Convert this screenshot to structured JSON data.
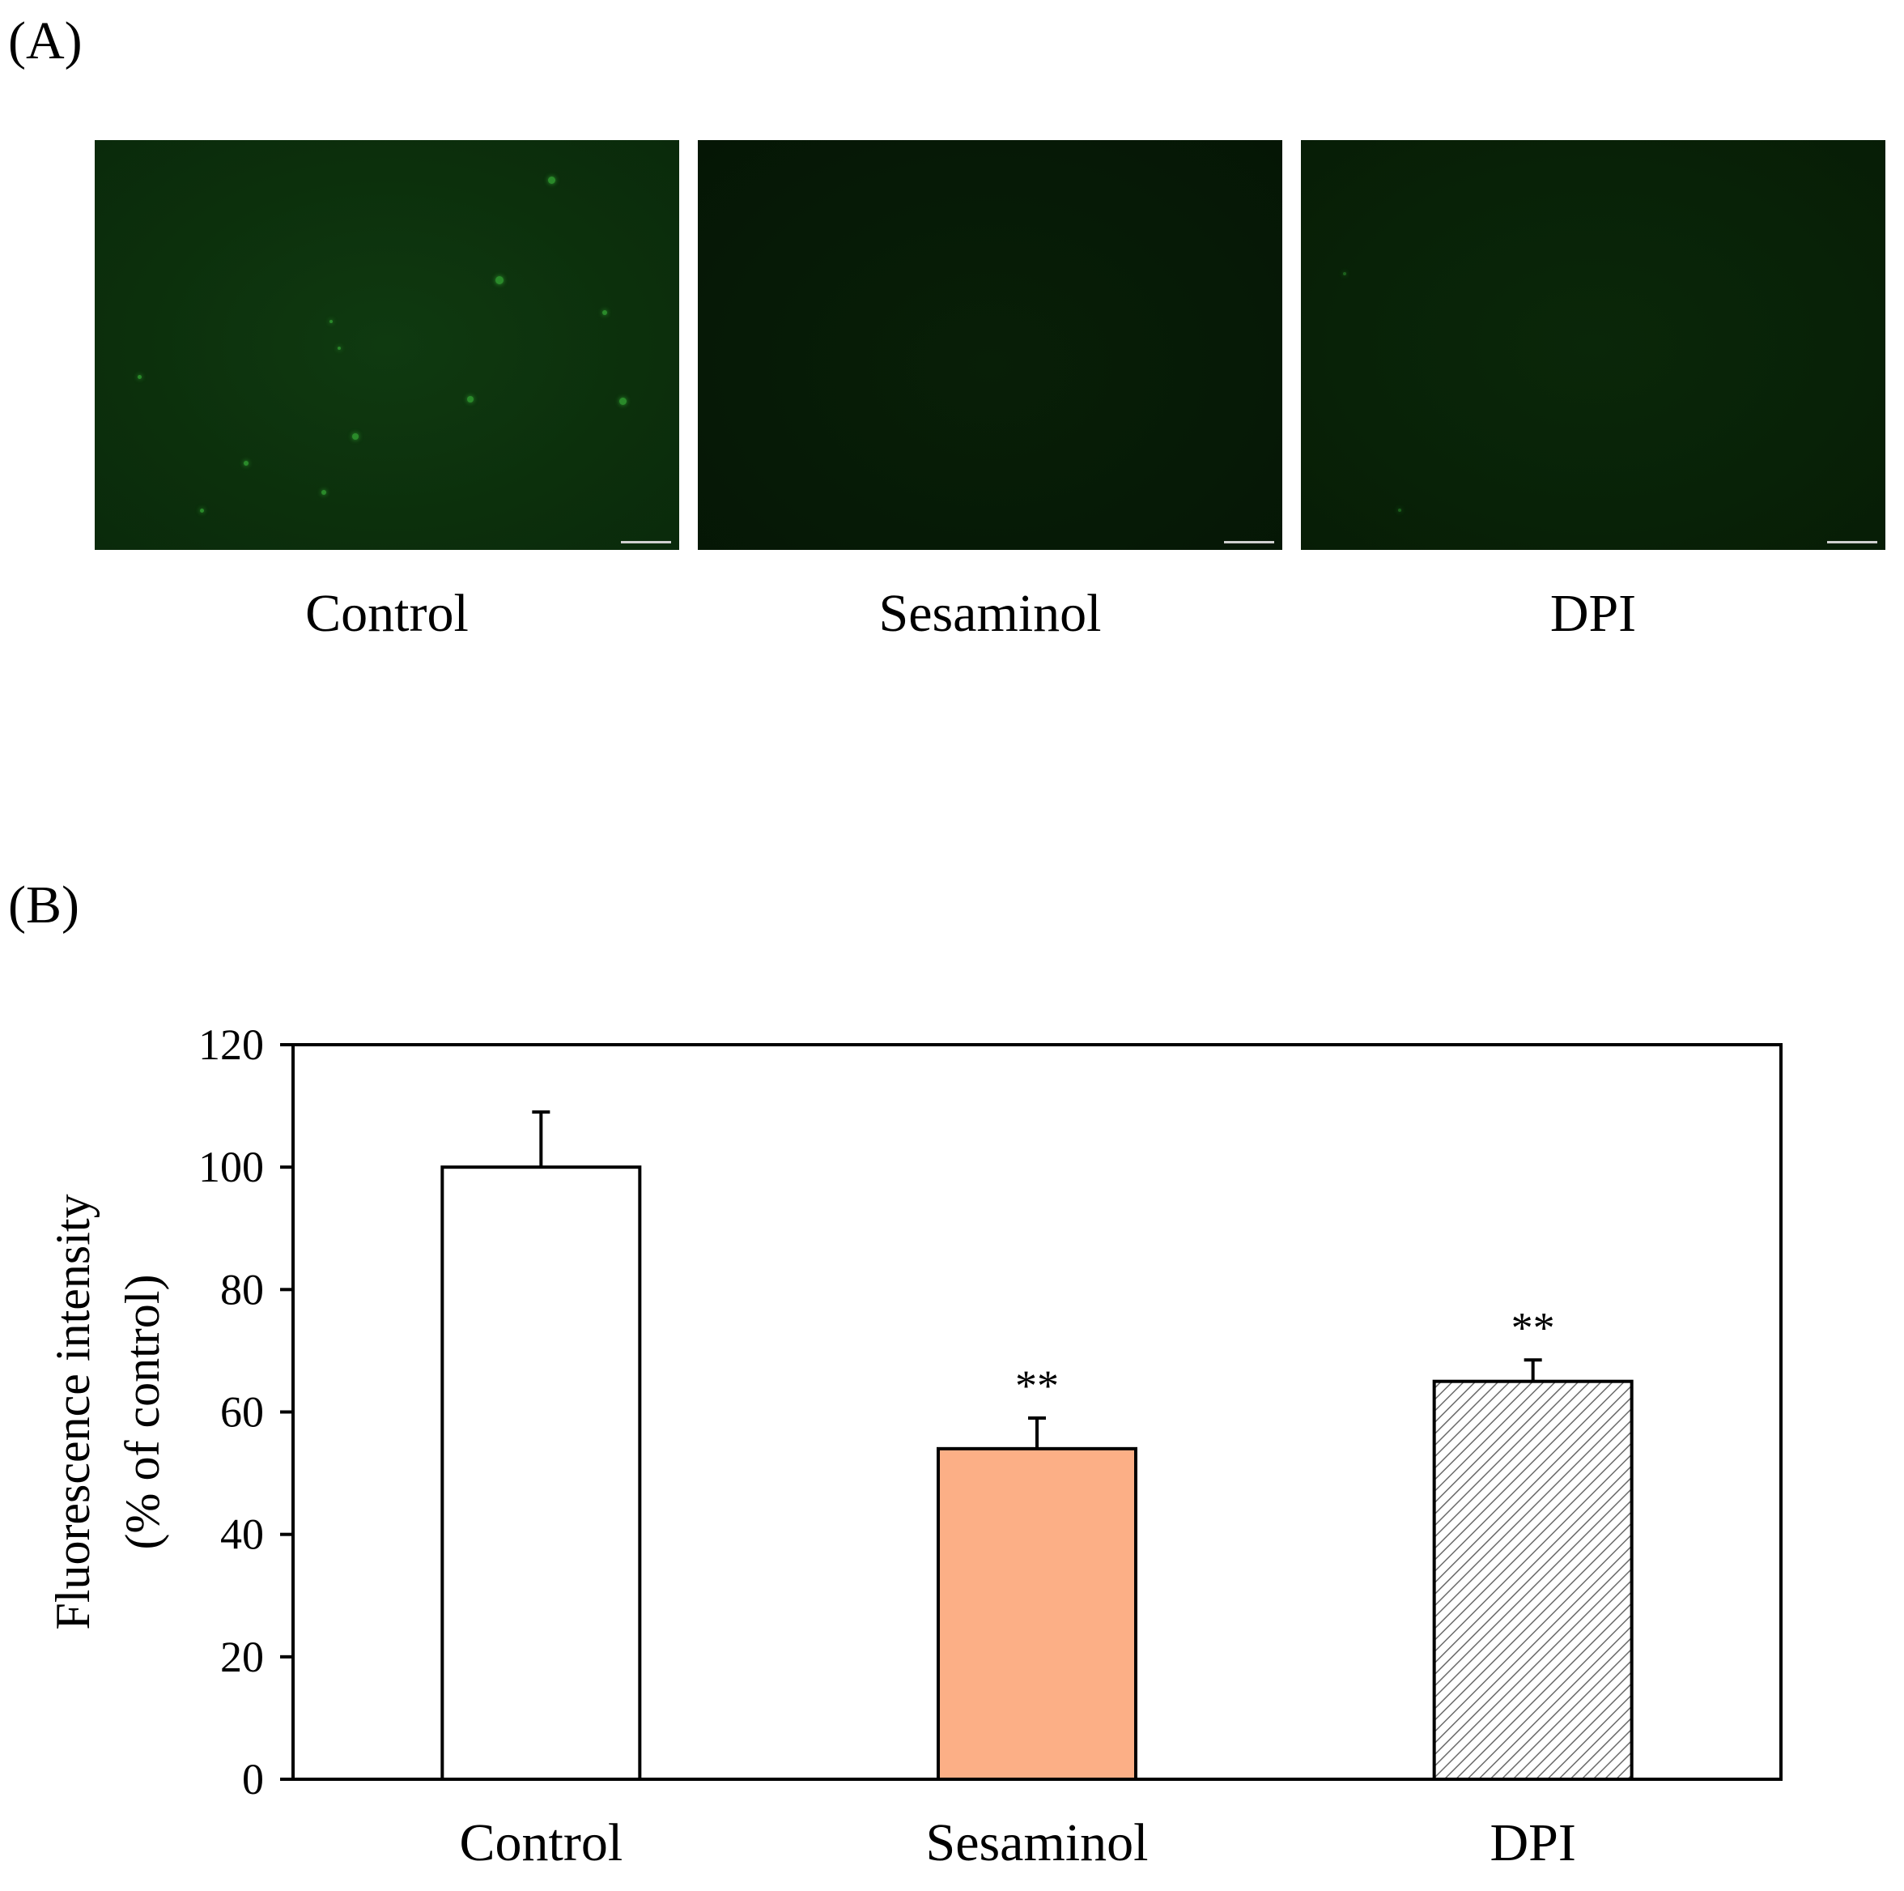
{
  "panel_a": {
    "label": "(A)",
    "images": [
      {
        "caption": "Control"
      },
      {
        "caption": "Sesaminol"
      },
      {
        "caption": "DPI"
      }
    ]
  },
  "panel_b": {
    "label": "(B)"
  },
  "chart_data": {
    "type": "bar",
    "categories": [
      "Control",
      "Sesaminol",
      "DPI"
    ],
    "values": [
      100,
      54,
      65
    ],
    "errors": [
      9,
      5,
      3.5
    ],
    "annotations": [
      "",
      "**",
      "**"
    ],
    "bar_fills": [
      "#ffffff",
      "#fcaf86",
      "hatch"
    ],
    "ylabel": "Fluorescence intensity",
    "ylabel2": "(% of control)",
    "ylim": [
      0,
      120
    ],
    "yticks": [
      0,
      20,
      40,
      60,
      80,
      100,
      120
    ],
    "grid": false,
    "legend": "none"
  }
}
